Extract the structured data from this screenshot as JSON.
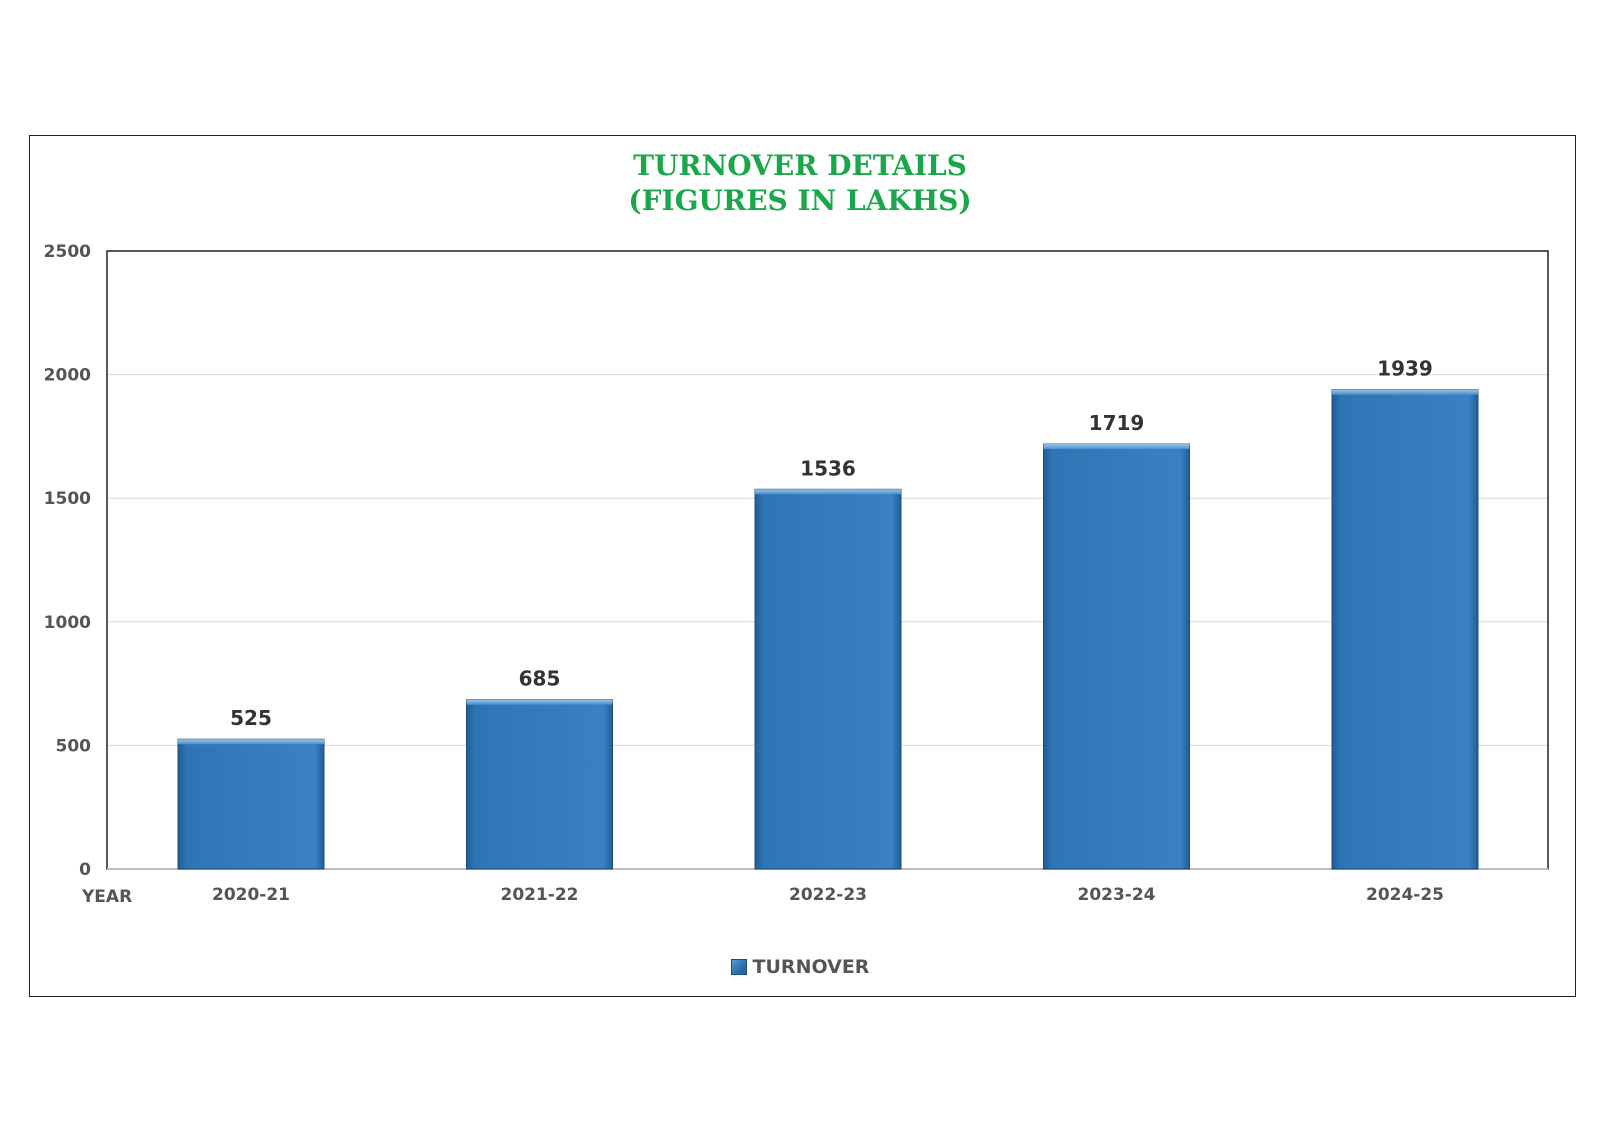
{
  "chart_data": {
    "type": "bar",
    "title": "TURNOVER DETAILS",
    "subtitle": "(FIGURES IN LAKHS)",
    "xlabel": "YEAR",
    "ylabel": "",
    "categories": [
      "2020-21",
      "2021-22",
      "2022-23",
      "2023-24",
      "2024-25"
    ],
    "series": [
      {
        "name": "TURNOVER",
        "values": [
          525,
          685,
          1536,
          1719,
          1939
        ]
      }
    ],
    "data_labels": [
      "525",
      "685",
      "1536",
      "1719",
      "1939"
    ],
    "ylim": [
      0,
      2500
    ],
    "yticks": [
      0,
      500,
      1000,
      1500,
      2000,
      2500
    ],
    "ytick_labels": [
      "0",
      "500",
      "1000",
      "1500",
      "2000",
      "2500"
    ],
    "grid": true,
    "legend_position": "bottom",
    "colors": {
      "bar": "#2e75b6",
      "title": "#1aa64b",
      "gridline": "#d9d9d9"
    }
  }
}
